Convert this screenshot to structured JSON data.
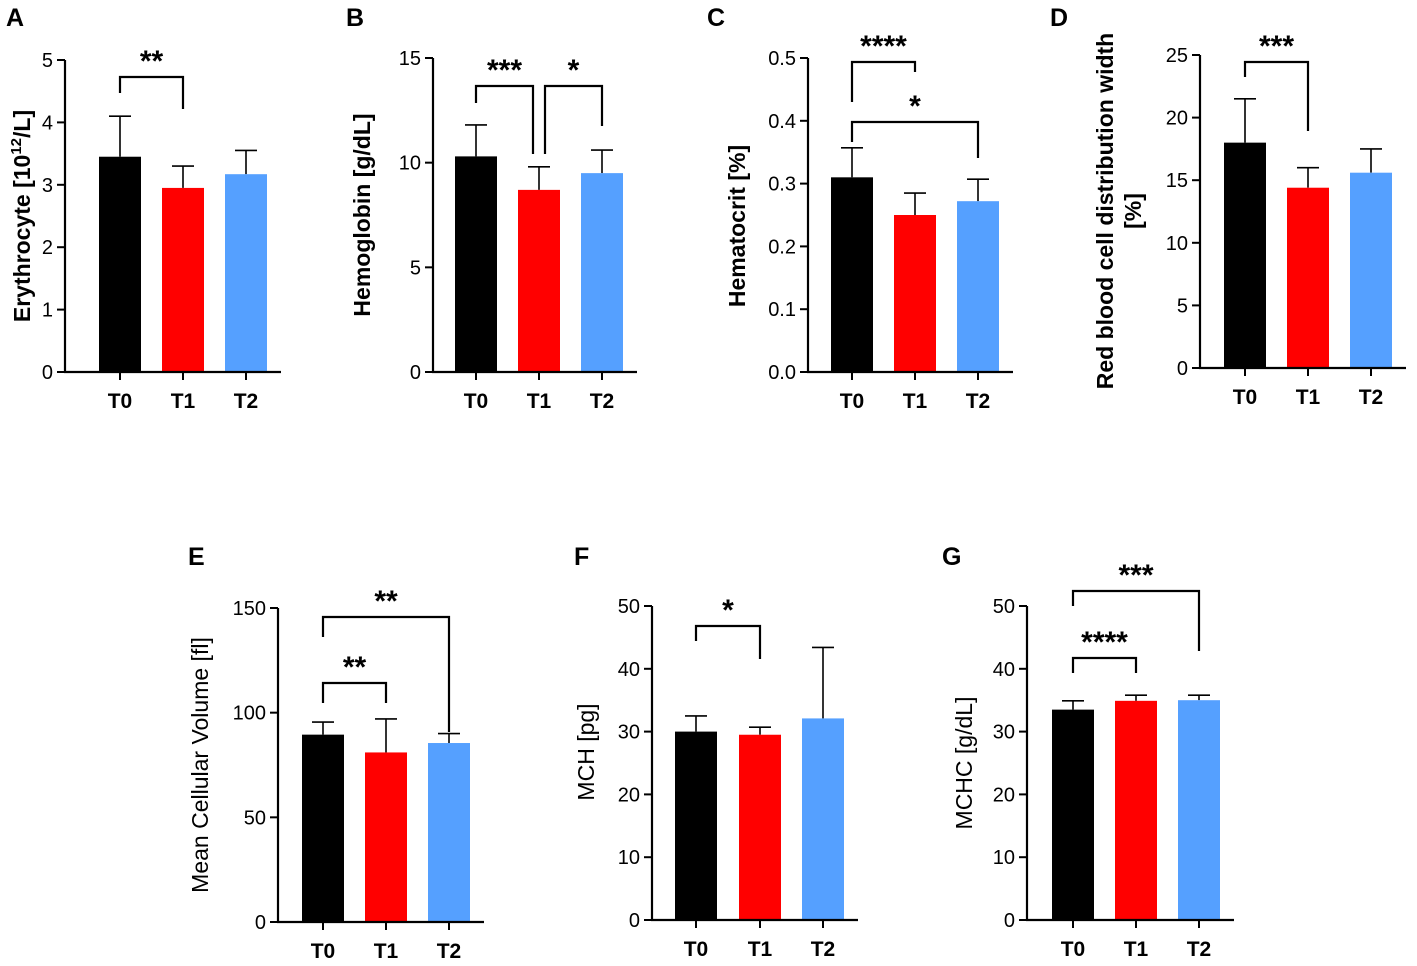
{
  "chart_data": [
    {
      "panel": "A",
      "type": "bar",
      "categories": [
        "T0",
        "T1",
        "T2"
      ],
      "values": [
        3.45,
        2.95,
        3.17
      ],
      "errors": [
        0.65,
        0.35,
        0.38
      ],
      "ylabel_main": "Erythrocyte [10",
      "ylabel_sup": "12",
      "ylabel_tail": "/L]",
      "ylim": [
        0,
        5
      ],
      "yticks": [
        "0",
        "1",
        "2",
        "3",
        "4",
        "5"
      ],
      "significance": [
        {
          "from": 0,
          "to": 1,
          "label": "**"
        }
      ]
    },
    {
      "panel": "B",
      "type": "bar",
      "categories": [
        "T0",
        "T1",
        "T2"
      ],
      "values": [
        10.3,
        8.7,
        9.5
      ],
      "errors": [
        1.5,
        1.1,
        1.1
      ],
      "ylabel_main": "Hemoglobin",
      "ylabel_tail": "[g/dL]",
      "ylim": [
        0,
        15
      ],
      "yticks": [
        "0",
        "5",
        "10",
        "15"
      ],
      "significance": [
        {
          "from": 0,
          "to": 1,
          "label": "***"
        },
        {
          "from": 1,
          "to": 2,
          "label": "*"
        }
      ]
    },
    {
      "panel": "C",
      "type": "bar",
      "categories": [
        "T0",
        "T1",
        "T2"
      ],
      "values": [
        0.31,
        0.25,
        0.272
      ],
      "errors": [
        0.047,
        0.035,
        0.035
      ],
      "ylabel_main": "Hematocrit",
      "ylabel_tail": "[%]",
      "ylim": [
        0,
        0.5
      ],
      "yticks": [
        "0.0",
        "0.1",
        "0.2",
        "0.3",
        "0.4",
        "0.5"
      ],
      "significance": [
        {
          "from": 0,
          "to": 1,
          "label": "****"
        },
        {
          "from": 0,
          "to": 2,
          "label": "*"
        }
      ]
    },
    {
      "panel": "D",
      "type": "bar",
      "categories": [
        "T0",
        "T1",
        "T2"
      ],
      "values": [
        18.0,
        14.4,
        15.6
      ],
      "errors": [
        3.5,
        1.6,
        1.9
      ],
      "ylabel_main": "Red blood cell distribution width",
      "ylabel_tail": "[%]",
      "ylim": [
        0,
        25
      ],
      "yticks": [
        "0",
        "5",
        "10",
        "15",
        "20",
        "25"
      ],
      "significance": [
        {
          "from": 0,
          "to": 1,
          "label": "***"
        }
      ]
    },
    {
      "panel": "E",
      "type": "bar",
      "categories": [
        "T0",
        "T1",
        "T2"
      ],
      "values": [
        89.5,
        81,
        85.5
      ],
      "errors": [
        6,
        16,
        4.5
      ],
      "ylabel_main": "Mean Cellular Volume [fl]",
      "ylim": [
        0,
        150
      ],
      "yticks": [
        "0",
        "50",
        "100",
        "150"
      ],
      "significance": [
        {
          "from": 0,
          "to": 1,
          "label": "**"
        },
        {
          "from": 0,
          "to": 2,
          "label": "**"
        }
      ]
    },
    {
      "panel": "F",
      "type": "bar",
      "categories": [
        "T0",
        "T1",
        "T2"
      ],
      "values": [
        30,
        29.5,
        32.1
      ],
      "errors": [
        2.5,
        1.2,
        11.3
      ],
      "ylabel_main": "MCH [pg]",
      "ylim": [
        0,
        50
      ],
      "yticks": [
        "0",
        "10",
        "20",
        "30",
        "40",
        "50"
      ],
      "significance": [
        {
          "from": 0,
          "to": 1,
          "label": "*"
        }
      ]
    },
    {
      "panel": "G",
      "type": "bar",
      "categories": [
        "T0",
        "T1",
        "T2"
      ],
      "values": [
        33.5,
        34.9,
        35
      ],
      "errors": [
        1.4,
        0.9,
        0.8
      ],
      "ylabel_main": "MCHC [g/dL]",
      "ylim": [
        0,
        50
      ],
      "yticks": [
        "0",
        "10",
        "20",
        "30",
        "40",
        "50"
      ],
      "significance": [
        {
          "from": 0,
          "to": 1,
          "label": "****"
        },
        {
          "from": 0,
          "to": 2,
          "label": "***"
        }
      ]
    }
  ],
  "colors": {
    "T0": "#000000",
    "T1": "#ff0000",
    "T2": "#55a0ff",
    "axis": "#000000"
  }
}
